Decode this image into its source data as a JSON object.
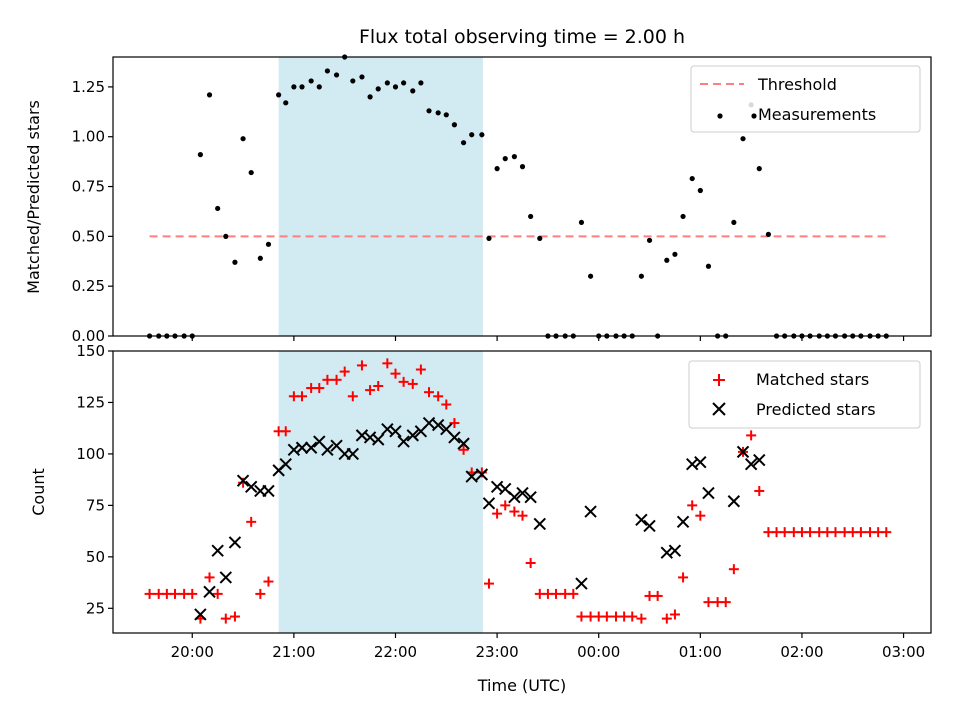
{
  "chart_data": {
    "type": "scatter",
    "title": "Flux total observing time = 2.00 h",
    "xlabel": "Time (UTC)",
    "x_ticks": [
      "20:00",
      "21:00",
      "22:00",
      "23:00",
      "00:00",
      "01:00",
      "02:00",
      "03:00"
    ],
    "x_tick_values_h": [
      20,
      21,
      22,
      23,
      24,
      25,
      26,
      27
    ],
    "xlim_h": [
      19.22,
      27.27
    ],
    "highlight_span_h": [
      20.85,
      22.86
    ],
    "highlight_color": "#add8e6",
    "panels": [
      {
        "id": "ratio",
        "ylabel": "Matched/Predicted stars",
        "ylim": [
          0,
          1.4
        ],
        "y_ticks": [
          0.0,
          0.25,
          0.5,
          0.75,
          1.0,
          1.25
        ],
        "y_tick_labels": [
          "0.00",
          "0.25",
          "0.50",
          "0.75",
          "1.00",
          "1.25"
        ],
        "threshold": {
          "name": "Threshold",
          "value": 0.5,
          "x_range_h": [
            19.58,
            26.87
          ],
          "color": "#ff7f7f"
        },
        "legend": [
          "Threshold",
          "Measurements"
        ],
        "series": [
          {
            "name": "Measurements",
            "marker": "dot",
            "color": "#000000",
            "x": [
              19.58,
              19.67,
              19.75,
              19.83,
              19.92,
              20.0,
              20.08,
              20.17,
              20.25,
              20.33,
              20.42,
              20.5,
              20.58,
              20.67,
              20.75,
              20.85,
              20.92,
              21.0,
              21.08,
              21.17,
              21.25,
              21.33,
              21.42,
              21.5,
              21.58,
              21.67,
              21.75,
              21.83,
              21.92,
              22.0,
              22.08,
              22.17,
              22.25,
              22.33,
              22.42,
              22.5,
              22.58,
              22.67,
              22.75,
              22.85,
              22.92,
              23.0,
              23.08,
              23.17,
              23.25,
              23.33,
              23.42,
              23.5,
              23.58,
              23.67,
              23.75,
              23.83,
              23.92,
              24.0,
              24.08,
              24.17,
              24.25,
              24.33,
              24.42,
              24.5,
              24.58,
              24.67,
              24.75,
              24.83,
              24.92,
              25.0,
              25.08,
              25.17,
              25.25,
              25.33,
              25.42,
              25.5,
              25.58,
              25.67,
              25.75,
              25.83,
              25.92,
              26.0,
              26.08,
              26.17,
              26.25,
              26.33,
              26.42,
              26.5,
              26.58,
              26.67,
              26.75,
              26.83
            ],
            "y": [
              0,
              0,
              0,
              0,
              0,
              0,
              0.91,
              1.21,
              0.64,
              0.5,
              0.37,
              0.99,
              0.82,
              0.39,
              0.46,
              1.21,
              1.17,
              1.25,
              1.25,
              1.28,
              1.25,
              1.33,
              1.31,
              1.4,
              1.28,
              1.3,
              1.2,
              1.24,
              1.27,
              1.25,
              1.27,
              1.23,
              1.27,
              1.13,
              1.12,
              1.11,
              1.06,
              0.97,
              1.01,
              1.01,
              0.49,
              0.84,
              0.89,
              0.9,
              0.85,
              0.6,
              0.49,
              0,
              0,
              0,
              0,
              0.57,
              0.3,
              0,
              0,
              0,
              0,
              0,
              0.3,
              0.48,
              0,
              0.38,
              0.41,
              0.6,
              0.79,
              0.73,
              0.35,
              0,
              0,
              0.57,
              0.99,
              1.16,
              0.84,
              0.51,
              0,
              0,
              0,
              0,
              0,
              0,
              0,
              0,
              0,
              0,
              0,
              0,
              0,
              0
            ]
          }
        ]
      },
      {
        "id": "counts",
        "ylabel": "Count",
        "ylim": [
          13,
          150
        ],
        "y_ticks": [
          25,
          50,
          75,
          100,
          125,
          150
        ],
        "y_tick_labels": [
          "25",
          "50",
          "75",
          "100",
          "125",
          "150"
        ],
        "legend": [
          "Matched stars",
          "Predicted stars"
        ],
        "series": [
          {
            "name": "Matched stars",
            "marker": "plus",
            "color": "#ff0000",
            "x": [
              19.58,
              19.67,
              19.75,
              19.83,
              19.92,
              20.0,
              20.08,
              20.17,
              20.25,
              20.33,
              20.42,
              20.5,
              20.58,
              20.67,
              20.75,
              20.85,
              20.92,
              21.0,
              21.08,
              21.17,
              21.25,
              21.33,
              21.42,
              21.5,
              21.58,
              21.67,
              21.75,
              21.83,
              21.92,
              22.0,
              22.08,
              22.17,
              22.25,
              22.33,
              22.42,
              22.5,
              22.58,
              22.67,
              22.75,
              22.85,
              22.92,
              23.0,
              23.08,
              23.17,
              23.25,
              23.33,
              23.42,
              23.5,
              23.58,
              23.67,
              23.75,
              23.83,
              23.92,
              24.0,
              24.08,
              24.17,
              24.25,
              24.33,
              24.42,
              24.5,
              24.58,
              24.67,
              24.75,
              24.83,
              24.92,
              25.0,
              25.08,
              25.17,
              25.25,
              25.33,
              25.42,
              25.5,
              25.58,
              25.67,
              25.75,
              25.83,
              25.92,
              26.0,
              26.08,
              26.17,
              26.25,
              26.33,
              26.42,
              26.5,
              26.58,
              26.67,
              26.75,
              26.83
            ],
            "y": [
              32,
              32,
              32,
              32,
              32,
              32,
              20,
              40,
              32,
              20,
              21,
              86,
              67,
              32,
              38,
              111,
              111,
              128,
              128,
              132,
              132,
              136,
              136,
              140,
              128,
              143,
              131,
              133,
              144,
              139,
              135,
              134,
              141,
              130,
              128,
              124,
              115,
              102,
              91,
              91,
              37,
              71,
              75,
              72,
              70,
              47,
              32,
              32,
              32,
              32,
              32,
              21,
              21,
              21,
              21,
              21,
              21,
              21,
              20,
              31,
              31,
              20,
              22,
              40,
              75,
              70,
              28,
              28,
              28,
              44,
              101,
              109,
              82,
              62,
              62,
              62,
              62,
              62,
              62,
              62,
              62,
              62,
              62,
              62,
              62,
              62,
              62,
              62
            ]
          },
          {
            "name": "Predicted stars",
            "marker": "x",
            "color": "#000000",
            "x": [
              20.08,
              20.17,
              20.25,
              20.33,
              20.42,
              20.5,
              20.58,
              20.67,
              20.75,
              20.85,
              20.92,
              21.0,
              21.08,
              21.17,
              21.25,
              21.33,
              21.42,
              21.5,
              21.58,
              21.67,
              21.75,
              21.83,
              21.92,
              22.0,
              22.08,
              22.17,
              22.25,
              22.33,
              22.42,
              22.5,
              22.58,
              22.67,
              22.75,
              22.85,
              22.92,
              23.0,
              23.08,
              23.17,
              23.25,
              23.33,
              23.42,
              23.83,
              23.92,
              24.42,
              24.5,
              24.67,
              24.75,
              24.83,
              24.92,
              25.0,
              25.08,
              25.33,
              25.42,
              25.5,
              25.58
            ],
            "y": [
              22,
              33,
              53,
              40,
              57,
              87,
              84,
              82,
              82,
              92,
              95,
              102,
              103,
              103,
              106,
              102,
              104,
              100,
              100,
              109,
              108,
              107,
              112,
              111,
              106,
              109,
              111,
              115,
              114,
              112,
              108,
              105,
              89,
              90,
              76,
              84,
              83,
              79,
              81,
              79,
              66,
              37,
              72,
              68,
              65,
              52,
              53,
              67,
              95,
              96,
              81,
              77,
              101,
              95,
              97
            ]
          }
        ]
      }
    ]
  }
}
